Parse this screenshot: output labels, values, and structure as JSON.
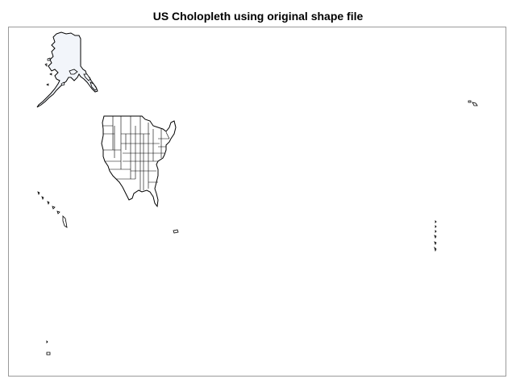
{
  "title": "US Cholopleth using original shape file",
  "map": {
    "projection": "unprojected longitude/latitude (original shape file)",
    "fill_colors": {
      "lower48": "#ffffff",
      "alaska": "#f2f5fa",
      "islands": "#ffffff",
      "outline": "#000000"
    },
    "visible_regions": [
      "Alaska",
      "Contiguous United States",
      "Hawaii",
      "Puerto Rico",
      "Guam",
      "Northern Mariana Islands",
      "American Samoa",
      "Aleutian Islands (eastern hemisphere)"
    ]
  }
}
